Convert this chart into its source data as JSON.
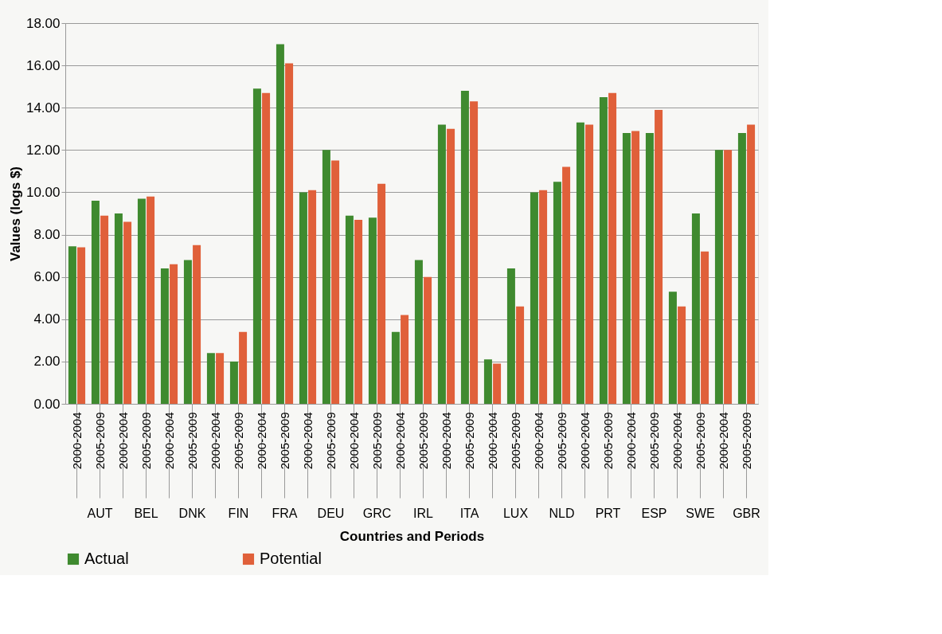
{
  "chart_data": {
    "type": "bar",
    "xlabel": "Countries and Periods",
    "ylabel": "Values (logs $)",
    "categories": [
      "2000-2004",
      "2005-2009",
      "2000-2004",
      "2005-2009",
      "2000-2004",
      "2005-2009",
      "2000-2004",
      "2005-2009",
      "2000-2004",
      "2005-2009",
      "2000-2004",
      "2005-2009",
      "2000-2004",
      "2005-2009",
      "2000-2004",
      "2005-2009",
      "2000-2004",
      "2005-2009",
      "2000-2004",
      "2005-2009",
      "2000-2004",
      "2005-2009",
      "2000-2004",
      "2005-2009",
      "2000-2004",
      "2005-2009",
      "2000-2004",
      "2005-2009",
      "2000-2004",
      "2005-2009"
    ],
    "annotations": [
      "AUT",
      "BEL",
      "DNK",
      "FIN",
      "FRA",
      "DEU",
      "GRC",
      "IRL",
      "ITA",
      "LUX",
      "NLD",
      "PRT",
      "ESP",
      "SWE",
      "GBR"
    ],
    "series": [
      {
        "name": "Actual",
        "color": "#3f8a2f",
        "values": [
          7.45,
          9.6,
          9.0,
          9.7,
          6.4,
          6.8,
          2.4,
          2.0,
          14.9,
          17.0,
          10.0,
          12.0,
          8.9,
          8.8,
          3.4,
          6.8,
          13.2,
          14.8,
          2.1,
          6.4,
          10.0,
          10.5,
          13.3,
          14.5,
          12.8,
          12.8,
          5.3,
          9.0,
          12.0,
          12.8
        ]
      },
      {
        "name": "Potential",
        "color": "#e0603a",
        "values": [
          7.4,
          8.9,
          8.6,
          9.8,
          6.6,
          7.5,
          2.4,
          3.4,
          14.7,
          16.1,
          10.1,
          11.5,
          8.7,
          10.4,
          4.2,
          6.0,
          13.0,
          14.3,
          1.9,
          4.6,
          10.1,
          11.2,
          13.2,
          14.7,
          12.9,
          13.9,
          4.6,
          7.2,
          12.0,
          13.2
        ]
      }
    ],
    "ylim": [
      0,
      18
    ],
    "yticks": [
      {
        "value": 0,
        "label": "0.00"
      },
      {
        "value": 2,
        "label": "2.00"
      },
      {
        "value": 4,
        "label": "4.00"
      },
      {
        "value": 6,
        "label": "6.00"
      },
      {
        "value": 8,
        "label": "8.00"
      },
      {
        "value": 10,
        "label": "10.00"
      },
      {
        "value": 12,
        "label": "12.00"
      },
      {
        "value": 14,
        "label": "14.00"
      },
      {
        "value": 16,
        "label": "16.00"
      },
      {
        "value": 18,
        "label": "18.00"
      }
    ],
    "grid": "y",
    "legend": "bottom"
  }
}
